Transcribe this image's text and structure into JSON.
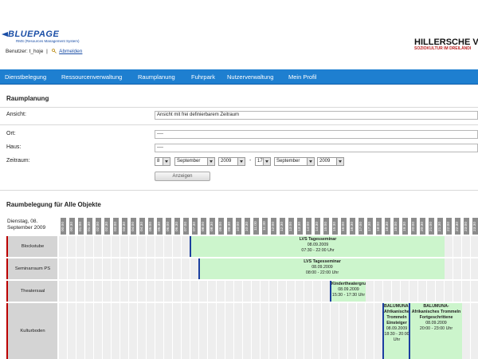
{
  "header": {
    "logo_word": "BLUEPAGE",
    "logo_sub": "RMS (Resources Management System)",
    "user_label": "Benutzer: t_hoje",
    "user_separator": "|",
    "logout_label": "Abmelden",
    "brand_name": "HILLERSCHE VIL",
    "brand_sub": "SOZIOKULTUR IM DREILÄNDI"
  },
  "nav": {
    "items": [
      "Dienstbelegung",
      "Ressourcenverwaltung",
      "Raumplanung",
      "Fuhrpark",
      "Nutzerverwaltung",
      "Mein Profil"
    ]
  },
  "form": {
    "title": "Raumplanung",
    "ansicht_label": "Ansicht:",
    "ansicht_value": "Ansicht mit frei definierbarem Zeitraum",
    "ort_label": "Ort:",
    "ort_value": "----",
    "haus_label": "Haus:",
    "haus_value": "----",
    "zeitraum_label": "Zeitraum:",
    "from_day": "8",
    "from_month": "September",
    "from_year": "2009",
    "range_separator": "-",
    "to_day": "17",
    "to_month": "September",
    "to_year": "2009",
    "show_button": "Anzeigen"
  },
  "schedule": {
    "title": "Raumbelegung für Alle Objekte",
    "date_label": "Dienstag, 08. September 2009",
    "time_slots": [
      "00:00",
      "00:30",
      "01:00",
      "01:30",
      "02:00",
      "02:30",
      "03:00",
      "03:30",
      "04:00",
      "04:30",
      "05:00",
      "05:30",
      "06:00",
      "06:30",
      "07:00",
      "07:30",
      "08:00",
      "08:30",
      "09:00",
      "09:30",
      "10:00",
      "10:30",
      "11:00",
      "11:30",
      "12:00",
      "12:30",
      "13:00",
      "13:30",
      "14:00",
      "14:30",
      "15:00",
      "15:30",
      "16:00",
      "16:30",
      "17:00",
      "17:30",
      "18:00",
      "18:30",
      "19:00",
      "19:30",
      "20:00",
      "20:30",
      "21:00",
      "21:30",
      "22:00",
      "22:30",
      "23:00",
      "23:30"
    ],
    "rooms": [
      {
        "name": "Blockstube"
      },
      {
        "name": "Seminarraum PS"
      },
      {
        "name": "Theatersaal"
      },
      {
        "name": "Kulturboden"
      }
    ],
    "events": [
      {
        "room": 0,
        "title": "LVS Tagesseminar",
        "date": "08.09.2009",
        "time": "07:30 - 22:00 Uhr"
      },
      {
        "room": 1,
        "title": "LVS Tagesseminar",
        "date": "08.09.2009",
        "time": "08:00 - 22:00 Uhr"
      },
      {
        "room": 2,
        "title": "Kindertheatergruppe",
        "date": "08.09.2009",
        "time": "15:30 - 17:30 Uhr"
      },
      {
        "room": 3,
        "title": "BALUMUNA- Afrikanisches Trommeln Einsteiger",
        "date": "08.09.2009",
        "time": "18:30 - 20:00 Uhr"
      },
      {
        "room": 3,
        "title": "BALUMUNA- Afrikanisches Trommeln Fortgeschrittene",
        "date": "08.09.2009",
        "time": "20:00 - 23:00 Uhr"
      }
    ]
  },
  "colors": {
    "nav_bg": "#1e7fd0",
    "event_bg": "#ccf5cc",
    "slot_header_bg": "#8c8c8c",
    "room_accent": "#b00000",
    "event_marker": "#1c3fa0"
  }
}
